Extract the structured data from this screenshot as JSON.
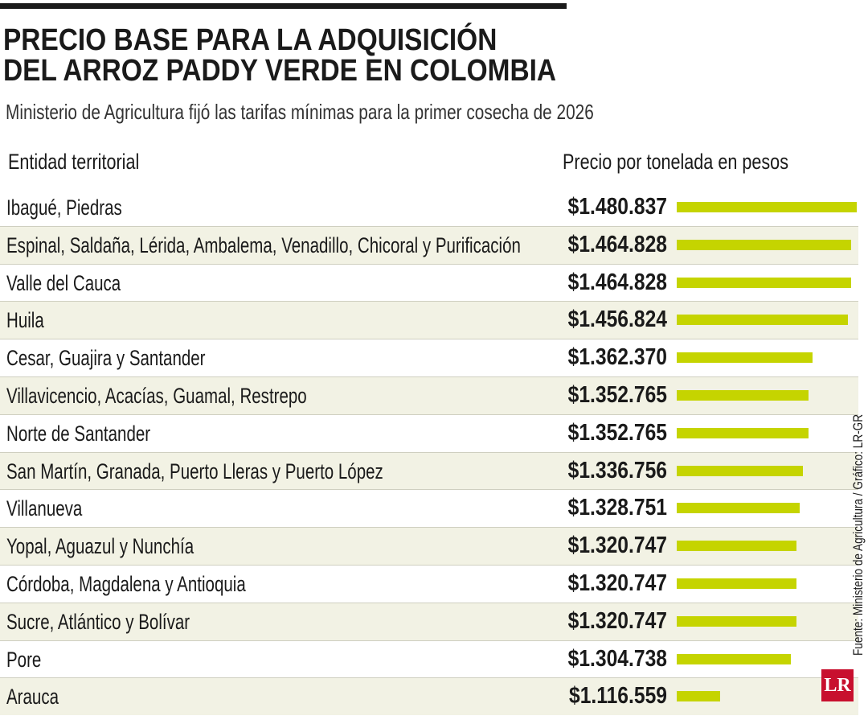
{
  "chart_data": {
    "type": "bar",
    "orientation": "horizontal",
    "title": [
      "PRECIO BASE PARA LA ADQUISICIÓN",
      "DEL ARROZ PADDY VERDE EN COLOMBIA"
    ],
    "subtitle": "Ministerio de Agricultura fijó las tarifas mínimas para la primer cosecha de 2026",
    "category_header": "Entidad territorial",
    "value_header": "Precio por tonelada en pesos",
    "categories": [
      "Ibagué, Piedras",
      "Espinal, Saldaña, Lérida, Ambalema, Venadillo, Chicoral y Purificación",
      "Valle del Cauca",
      "Huila",
      "Cesar, Guajira y Santander",
      "Villavicencio, Acacías, Guamal, Restrepo",
      "Norte de Santander",
      "San Martín, Granada, Puerto Lleras y Puerto López",
      "Villanueva",
      "Yopal, Aguazul y Nunchía",
      "Córdoba, Magdalena y Antioquia",
      "Sucre, Atlántico y Bolívar",
      "Pore",
      "Arauca"
    ],
    "values": [
      1480837,
      1464828,
      1464828,
      1456824,
      1362370,
      1352765,
      1352765,
      1336756,
      1328751,
      1320747,
      1320747,
      1320747,
      1304738,
      1116559
    ],
    "value_labels": [
      "$1.480.837",
      "$1.464.828",
      "$1.464.828",
      "$1.456.824",
      "$1.362.370",
      "$1.352.765",
      "$1.352.765",
      "$1.336.756",
      "$1.328.751",
      "$1.320.747",
      "$1.320.747",
      "$1.320.747",
      "$1.304.738",
      "$1.116.559"
    ],
    "xlim": [
      1000000,
      1500000
    ],
    "color": "#c5d400",
    "source": "Fuente: Ministerio de Agricultura / Gráfico: LR-GR",
    "logo": "LR"
  }
}
